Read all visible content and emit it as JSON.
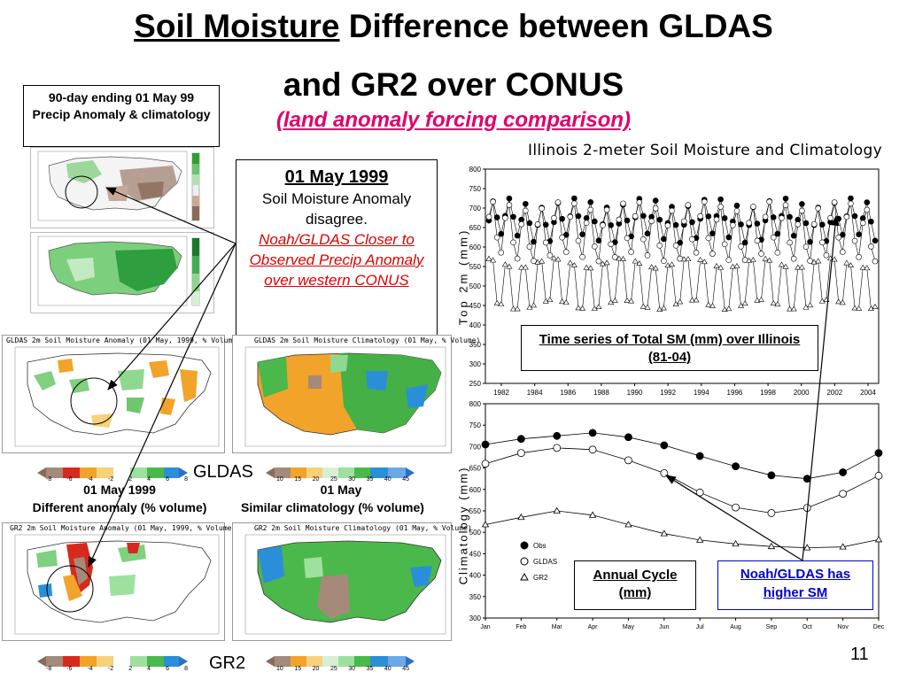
{
  "title": {
    "part1": "Soil Moisture",
    "part2": " Difference between GLDAS",
    "line2": "and GR2 over CONUS",
    "subtitle": "(land anomaly forcing comparison)"
  },
  "precip_box": {
    "text": "90-day ending 01 May 99 Precip Anomaly & climatology"
  },
  "main_box": {
    "date": "01 May 1999",
    "line1": "Soil Moisture Anomaly disagree.",
    "red_text": "Noah/GLDAS Closer to Observed Precip Anomaly over western CONUS"
  },
  "maps": {
    "gldas_anom_title": "GLDAS 2m Soil Moisture Anomaly (01 May, 1999, % Volume)",
    "gldas_clim_title": "GLDAS 2m Soil Moisture Climatology (01 May, % Volume)",
    "gr2_anom_title": "GR2 2m Soil Moisture Anomaly (01 May, 1999, % Volume)",
    "gr2_clim_title": "GR2 2m Soil Moisture Climatology (01 May, % Volume)",
    "gldas_label": "GLDAS",
    "gr2_label": "GR2",
    "left_caption_1": "01 May 1999",
    "left_caption_2": "Different anomaly (% volume)",
    "right_caption_1": "01 May",
    "right_caption_2": "Similar climatology (% volume)",
    "anom_scale": [
      "-8",
      "-6",
      "-4",
      "-2",
      "2",
      "4",
      "6",
      "8"
    ],
    "clim_scale": [
      "10",
      "15",
      "20",
      "25",
      "30",
      "35",
      "40",
      "45"
    ]
  },
  "ts_chart": {
    "title": "Illinois 2-meter Soil Moisture and Climatology",
    "ylabel": "Top 2m (mm)",
    "yticks": [
      "800",
      "750",
      "700",
      "650",
      "600",
      "550",
      "500",
      "450",
      "400",
      "350",
      "300",
      "250"
    ],
    "xticks": [
      "1982",
      "1984",
      "1986",
      "1988",
      "1990",
      "1992",
      "1994",
      "1996",
      "1998",
      "2000",
      "2002",
      "2004"
    ],
    "ylim": [
      250,
      800
    ],
    "box_text": "Time series of Total SM (mm) over Illinois (81-04)"
  },
  "chart_data": {
    "type": "line",
    "ylabel": "Climatology (mm)",
    "categories": [
      "Jan",
      "Feb",
      "Mar",
      "Apr",
      "May",
      "Jun",
      "Jul",
      "Aug",
      "Sep",
      "Oct",
      "Nov",
      "Dec"
    ],
    "ylim": [
      300,
      800
    ],
    "yticks": [
      "800",
      "750",
      "700",
      "650",
      "600",
      "550",
      "500",
      "450",
      "400",
      "350",
      "300"
    ],
    "series": [
      {
        "name": "Obs",
        "marker": "filled-circle",
        "values": [
          705,
          718,
          725,
          732,
          722,
          703,
          678,
          654,
          633,
          625,
          640,
          685
        ]
      },
      {
        "name": "GLDAS",
        "marker": "open-circle",
        "values": [
          660,
          685,
          697,
          693,
          668,
          638,
          593,
          558,
          545,
          557,
          590,
          632
        ]
      },
      {
        "name": "GR2",
        "marker": "open-triangle",
        "values": [
          518,
          535,
          550,
          540,
          518,
          497,
          482,
          473,
          467,
          464,
          466,
          483
        ]
      }
    ],
    "legend_placement": "bottom-left"
  },
  "annual_box": {
    "text": "Annual Cycle (mm)"
  },
  "noah_box": {
    "text": "Noah/GLDAS has higher SM"
  },
  "slide_number": "11"
}
